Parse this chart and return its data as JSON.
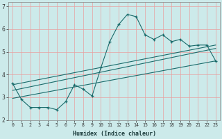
{
  "xlabel": "Humidex (Indice chaleur)",
  "bg_color": "#cceaea",
  "line_color": "#1a6b6b",
  "grid_color": "#e8a0a0",
  "xlim": [
    -0.5,
    23.5
  ],
  "ylim": [
    2,
    7.2
  ],
  "yticks": [
    2,
    3,
    4,
    5,
    6,
    7
  ],
  "xtick_labels": [
    "0",
    "1",
    "2",
    "3",
    "4",
    "5",
    "6",
    "7",
    "8",
    "9",
    "10",
    "11",
    "12",
    "13",
    "14",
    "15",
    "16",
    "17",
    "18",
    "19",
    "20",
    "21",
    "22",
    "23"
  ],
  "curve1_x": [
    0,
    1,
    2,
    3,
    4,
    5,
    6,
    7,
    8,
    9,
    10,
    11,
    12,
    13,
    14,
    15,
    16,
    17,
    18,
    19,
    20,
    21,
    22,
    23
  ],
  "curve1_y": [
    3.6,
    2.9,
    2.55,
    2.55,
    2.55,
    2.45,
    2.8,
    3.55,
    3.35,
    3.05,
    4.3,
    5.45,
    6.2,
    6.65,
    6.55,
    5.75,
    5.55,
    5.75,
    5.45,
    5.55,
    5.25,
    5.3,
    5.3,
    4.6
  ],
  "curve2_x": [
    0,
    23
  ],
  "curve2_y": [
    2.95,
    4.6
  ],
  "curve3_x": [
    0,
    23
  ],
  "curve3_y": [
    3.3,
    5.15
  ],
  "curve4_x": [
    0,
    23
  ],
  "curve4_y": [
    3.55,
    5.3
  ]
}
